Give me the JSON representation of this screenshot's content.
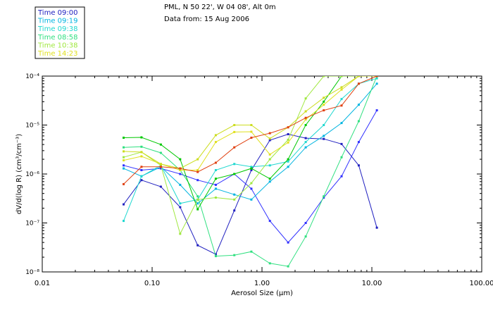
{
  "header": {
    "line1": "PML, N 50 22', W 04 08', Alt 0m",
    "line2": "Data from: 15 Aug 2006"
  },
  "chart_data": {
    "type": "line",
    "title": "",
    "xlabel": "Aerosol Size (μm)",
    "ylabel": "dV/d(log R) (cm³/cm⁻³)",
    "xscale": "log",
    "yscale": "log",
    "xlim": [
      0.01,
      100
    ],
    "ylim": [
      1e-08,
      0.0001
    ],
    "x_tick_labels": [
      "0.01",
      "0.10",
      "1.00",
      "10.00",
      "100.00"
    ],
    "x_ticks": [
      0.01,
      0.1,
      1,
      10,
      100
    ],
    "y_ticks": [
      1e-08,
      1e-07,
      1e-06,
      1e-05,
      0.0001
    ],
    "y_tick_labels": [
      "10⁻⁸",
      "10⁻⁷",
      "10⁻⁶",
      "10⁻⁵",
      "10⁻⁴"
    ],
    "grid": false,
    "legend_position": "top-left",
    "x": [
      0.055,
      0.08,
      0.12,
      0.18,
      0.26,
      0.38,
      0.56,
      0.8,
      1.18,
      1.73,
      2.5,
      3.65,
      5.3,
      7.6,
      11.1
    ],
    "series": [
      {
        "name": "Time 09:00",
        "color": "#2020c0",
        "values": [
          2.4e-07,
          7.5e-07,
          5.5e-07,
          2.1e-07,
          3.5e-08,
          2.3e-08,
          1.8e-07,
          1.2e-06,
          4.9e-06,
          6.5e-06,
          5.4e-06,
          5.2e-06,
          4.1e-06,
          1.5e-06,
          8e-08
        ]
      },
      {
        "name": "Time 09:00",
        "color": "#3030ff",
        "values": [
          1.5e-06,
          1.2e-06,
          1.3e-06,
          1e-06,
          7.5e-07,
          6e-07,
          1e-06,
          5e-07,
          1.1e-07,
          4e-08,
          1e-07,
          3.3e-07,
          9e-07,
          4.5e-06,
          2e-05
        ]
      },
      {
        "name": "Time 09:19",
        "color": "#00b4e0",
        "values": [
          1.3e-06,
          9e-07,
          1.4e-06,
          6e-07,
          2.5e-07,
          5e-07,
          3.8e-07,
          3e-07,
          7e-07,
          1.4e-06,
          3.5e-06,
          6e-06,
          1.1e-05,
          2.6e-05,
          7e-05
        ]
      },
      {
        "name": "Time 09:38",
        "color": "#20d8d0",
        "values": [
          1.1e-07,
          9e-07,
          1.5e-06,
          2.5e-07,
          3e-07,
          1.2e-06,
          1.6e-06,
          1.4e-06,
          1.5e-06,
          1.8e-06,
          4.5e-06,
          1e-05,
          3.4e-05,
          7e-05,
          9e-05
        ]
      },
      {
        "name": "Time 08:58",
        "color": "#30e080",
        "values": [
          3.5e-06,
          3.6e-06,
          2.7e-06,
          1.2e-06,
          3.5e-07,
          2.1e-08,
          2.2e-08,
          2.6e-08,
          1.5e-08,
          1.3e-08,
          5.3e-08,
          3.5e-07,
          2.2e-06,
          1.2e-05,
          0.0001
        ]
      },
      {
        "name": "Time 08:58",
        "color": "#00c800",
        "values": [
          5.5e-06,
          5.6e-06,
          4e-06,
          2e-06,
          1.9e-07,
          8e-07,
          1e-06,
          1.3e-06,
          8e-07,
          2e-06,
          1e-05,
          3e-05,
          0.0001,
          0.0001,
          0.0001
        ]
      },
      {
        "name": "Time 10:38",
        "color": "#a0e840",
        "values": [
          2.2e-06,
          2.8e-06,
          1.5e-06,
          6e-08,
          3e-07,
          3.3e-07,
          3e-07,
          6.5e-07,
          2e-06,
          5e-06,
          3.5e-05,
          0.0001,
          0.0001,
          0.0001,
          0.0001
        ]
      },
      {
        "name": "Time 14:23",
        "color": "#e0e020",
        "values": [
          1.9e-06,
          2.3e-06,
          1.6e-06,
          1.2e-06,
          1.2e-06,
          4.5e-06,
          7.2e-06,
          7.3e-06,
          2.5e-06,
          4.4e-06,
          1.3e-05,
          2.6e-05,
          5.3e-05,
          0.0001,
          0.0001
        ]
      },
      {
        "name": "Time 14:23",
        "color": "#ccdd20",
        "values": [
          2.9e-06,
          2.8e-06,
          1.6e-06,
          1.3e-06,
          2e-06,
          6.2e-06,
          1e-05,
          1e-05,
          5.3e-06,
          9e-06,
          1.9e-05,
          3.6e-05,
          5.9e-05,
          0.0001,
          0.0001
        ]
      },
      {
        "name": "Time 08:58",
        "color": "#e04010",
        "values": [
          6.2e-07,
          1.4e-06,
          1.4e-06,
          1.3e-06,
          1.1e-06,
          1.7e-06,
          3.5e-06,
          5.5e-06,
          6.8e-06,
          9e-06,
          1.4e-05,
          2e-05,
          2.5e-05,
          7e-05,
          0.0001
        ]
      }
    ],
    "legend": [
      {
        "label": "Time 09:00",
        "color": "#2020c0"
      },
      {
        "label": "Time 09:19",
        "color": "#00b4e0"
      },
      {
        "label": "Time 09:38",
        "color": "#20d8d0"
      },
      {
        "label": "Time 08:58",
        "color": "#30e080"
      },
      {
        "label": "Time 10:38",
        "color": "#a0e840"
      },
      {
        "label": "Time 14:23",
        "color": "#e0e020"
      }
    ]
  }
}
